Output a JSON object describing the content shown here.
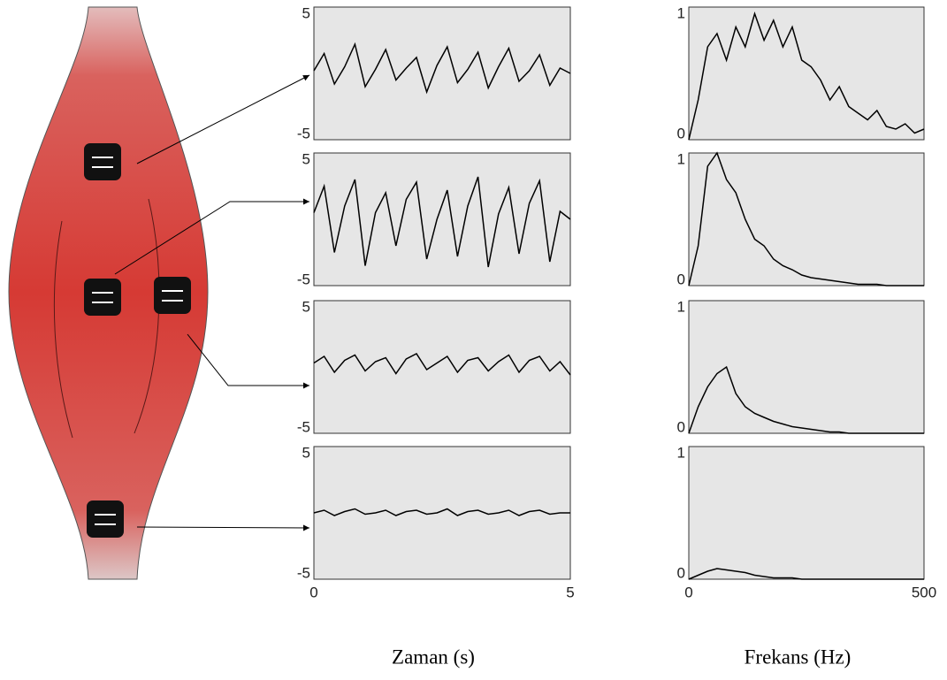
{
  "chart_data": [
    {
      "type": "line",
      "x": [
        0,
        0.2,
        0.4,
        0.6,
        0.8,
        1,
        1.2,
        1.4,
        1.6,
        1.8,
        2,
        2.2,
        2.4,
        2.6,
        2.8,
        3,
        3.2,
        3.4,
        3.6,
        3.8,
        4,
        4.2,
        4.4,
        4.6,
        4.8,
        5
      ],
      "values": [
        0.2,
        1.5,
        -0.8,
        0.5,
        2.2,
        -1,
        0.3,
        1.8,
        -0.5,
        0.4,
        1.2,
        -1.4,
        0.6,
        2,
        -0.7,
        0.3,
        1.6,
        -1.1,
        0.5,
        1.9,
        -0.6,
        0.2,
        1.4,
        -0.9,
        0.4,
        0
      ],
      "color": "#000000",
      "xlim": [
        0,
        5
      ],
      "ylim": [
        -5,
        5
      ],
      "yticks": [
        -5,
        5
      ]
    },
    {
      "type": "line",
      "x": [
        0,
        0.2,
        0.4,
        0.6,
        0.8,
        1,
        1.2,
        1.4,
        1.6,
        1.8,
        2,
        2.2,
        2.4,
        2.6,
        2.8,
        3,
        3.2,
        3.4,
        3.6,
        3.8,
        4,
        4.2,
        4.4,
        4.6,
        4.8,
        5
      ],
      "values": [
        0.5,
        2.5,
        -2.5,
        1,
        3,
        -3.5,
        0.5,
        2,
        -2,
        1.5,
        2.8,
        -3,
        0,
        2.2,
        -2.8,
        1,
        3.2,
        -3.6,
        0.4,
        2.4,
        -2.6,
        1.2,
        2.9,
        -3.2,
        0.6,
        0
      ],
      "color": "#000000",
      "xlim": [
        0,
        5
      ],
      "ylim": [
        -5,
        5
      ],
      "yticks": [
        -5,
        5
      ]
    },
    {
      "type": "line",
      "x": [
        0,
        0.2,
        0.4,
        0.6,
        0.8,
        1,
        1.2,
        1.4,
        1.6,
        1.8,
        2,
        2.2,
        2.4,
        2.6,
        2.8,
        3,
        3.2,
        3.4,
        3.6,
        3.8,
        4,
        4.2,
        4.4,
        4.6,
        4.8,
        5
      ],
      "values": [
        0.3,
        0.8,
        -0.4,
        0.5,
        0.9,
        -0.3,
        0.4,
        0.7,
        -0.5,
        0.6,
        1,
        -0.2,
        0.3,
        0.8,
        -0.4,
        0.5,
        0.7,
        -0.3,
        0.4,
        0.9,
        -0.4,
        0.5,
        0.8,
        -0.3,
        0.4,
        -0.6
      ],
      "color": "#000000",
      "xlim": [
        0,
        5
      ],
      "ylim": [
        -5,
        5
      ],
      "yticks": [
        -5,
        5
      ]
    },
    {
      "type": "line",
      "x": [
        0,
        0.2,
        0.4,
        0.6,
        0.8,
        1,
        1.2,
        1.4,
        1.6,
        1.8,
        2,
        2.2,
        2.4,
        2.6,
        2.8,
        3,
        3.2,
        3.4,
        3.6,
        3.8,
        4,
        4.2,
        4.4,
        4.6,
        4.8,
        5
      ],
      "values": [
        0,
        0.2,
        -0.2,
        0.1,
        0.3,
        -0.1,
        0,
        0.2,
        -0.2,
        0.1,
        0.2,
        -0.1,
        0,
        0.3,
        -0.2,
        0.1,
        0.2,
        -0.1,
        0,
        0.2,
        -0.2,
        0.1,
        0.2,
        -0.1,
        0,
        0
      ],
      "color": "#000000",
      "xlim": [
        0,
        5
      ],
      "ylim": [
        -5,
        5
      ],
      "yticks": [
        -5,
        5
      ],
      "xticks": [
        0,
        5
      ],
      "xlabel": "Zaman (s)"
    },
    {
      "type": "line",
      "x": [
        0,
        20,
        40,
        60,
        80,
        100,
        120,
        140,
        160,
        180,
        200,
        220,
        240,
        260,
        280,
        300,
        320,
        340,
        360,
        380,
        400,
        420,
        440,
        460,
        480,
        500
      ],
      "values": [
        0,
        0.3,
        0.7,
        0.8,
        0.6,
        0.85,
        0.7,
        0.95,
        0.75,
        0.9,
        0.7,
        0.85,
        0.6,
        0.55,
        0.45,
        0.3,
        0.4,
        0.25,
        0.2,
        0.15,
        0.22,
        0.1,
        0.08,
        0.12,
        0.05,
        0.08
      ],
      "color": "#000000",
      "xlim": [
        0,
        500
      ],
      "ylim": [
        0,
        1
      ],
      "yticks": [
        0,
        1
      ]
    },
    {
      "type": "line",
      "x": [
        0,
        20,
        40,
        60,
        80,
        100,
        120,
        140,
        160,
        180,
        200,
        220,
        240,
        260,
        280,
        300,
        320,
        340,
        360,
        380,
        400,
        420,
        440,
        460,
        480,
        500
      ],
      "values": [
        0,
        0.3,
        0.9,
        1,
        0.8,
        0.7,
        0.5,
        0.35,
        0.3,
        0.2,
        0.15,
        0.12,
        0.08,
        0.06,
        0.05,
        0.04,
        0.03,
        0.02,
        0.01,
        0.01,
        0.01,
        0,
        0,
        0,
        0,
        0
      ],
      "color": "#000000",
      "xlim": [
        0,
        500
      ],
      "ylim": [
        0,
        1
      ],
      "yticks": [
        0,
        1
      ]
    },
    {
      "type": "line",
      "x": [
        0,
        20,
        40,
        60,
        80,
        100,
        120,
        140,
        160,
        180,
        200,
        220,
        240,
        260,
        280,
        300,
        320,
        340,
        360,
        380,
        400,
        420,
        440,
        460,
        480,
        500
      ],
      "values": [
        0,
        0.2,
        0.35,
        0.45,
        0.5,
        0.3,
        0.2,
        0.15,
        0.12,
        0.09,
        0.07,
        0.05,
        0.04,
        0.03,
        0.02,
        0.01,
        0.01,
        0,
        0,
        0,
        0,
        0,
        0,
        0,
        0,
        0
      ],
      "color": "#000000",
      "xlim": [
        0,
        500
      ],
      "ylim": [
        0,
        1
      ],
      "yticks": [
        0,
        1
      ]
    },
    {
      "type": "line",
      "x": [
        0,
        20,
        40,
        60,
        80,
        100,
        120,
        140,
        160,
        180,
        200,
        220,
        240,
        260,
        280,
        300,
        320,
        340,
        360,
        380,
        400,
        420,
        440,
        460,
        480,
        500
      ],
      "values": [
        0,
        0.03,
        0.06,
        0.08,
        0.07,
        0.06,
        0.05,
        0.03,
        0.02,
        0.01,
        0.01,
        0.01,
        0,
        0,
        0,
        0,
        0,
        0,
        0,
        0,
        0,
        0,
        0,
        0,
        0,
        0
      ],
      "color": "#000000",
      "xlim": [
        0,
        500
      ],
      "ylim": [
        0,
        1
      ],
      "yticks": [
        0,
        1
      ],
      "xticks": [
        0,
        500
      ],
      "xlabel": "Frekans (Hz)"
    }
  ]
}
